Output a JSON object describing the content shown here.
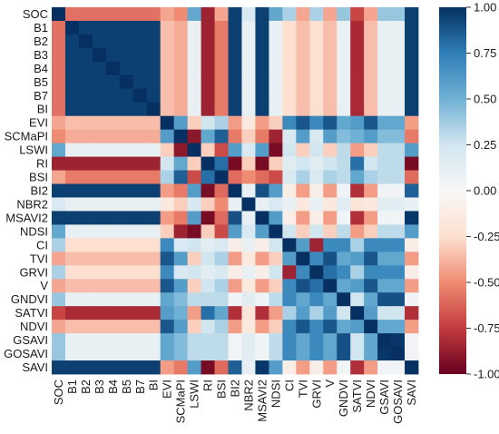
{
  "chart_data": {
    "type": "heatmap",
    "variables": [
      "SOC",
      "B1",
      "B2",
      "B3",
      "B4",
      "B5",
      "B7",
      "BI",
      "EVI",
      "SCMaPI",
      "LSWI",
      "RI",
      "BSI",
      "BI2",
      "NBR2",
      "MSAVI2",
      "NDSI",
      "CI",
      "TVI",
      "GRVI",
      "V",
      "GNDVI",
      "SATVI",
      "NDVI",
      "GSAVI",
      "GOSAVI",
      "SAVI"
    ],
    "groups": {
      "S": [
        1
      ],
      "B": [
        1,
        2,
        3,
        4,
        5,
        6,
        7
      ],
      "EV": [
        8,
        18,
        20,
        23
      ],
      "SC": [
        9
      ],
      "LW": [
        10,
        16
      ],
      "RI": [
        11
      ],
      "BS": [
        12
      ],
      "B2": [
        13,
        15,
        26
      ],
      "NB": [
        14
      ],
      "CI": [
        17,
        19
      ],
      "GN": [
        21,
        24,
        25
      ],
      "SA": [
        22
      ]
    },
    "corr": {
      "S-B": -0.58,
      "S-EV": -0.42,
      "S-SC": -0.5,
      "S-LW": 0.55,
      "S-RI": -0.85,
      "S-BS": -0.42,
      "S-B2": 0.95,
      "S-NB": 0.2,
      "S-CI": 0.35,
      "S-GN": 0.4,
      "S-SA": -0.72,
      "B-B": 0.95,
      "B-EV": -0.35,
      "B-SC": -0.4,
      "B-LW": 0.1,
      "B-RI": -0.85,
      "B-BS": -0.55,
      "B-B2": 0.95,
      "B-NB": 0.1,
      "B-CI": -0.25,
      "B-GN": 0.1,
      "B-SA": -0.82,
      "EV-EV": 0.88,
      "EV-SC": 0.6,
      "EV-LW": -0.3,
      "EV-RI": 0.25,
      "EV-BS": 0.35,
      "EV-B2": -0.45,
      "EV-NB": -0.15,
      "EV-CI": 0.7,
      "EV-GN": 0.55,
      "EV-SA": 0.6,
      "SC-SC": 1,
      "SC-LW": -0.85,
      "SC-RI": 0.55,
      "SC-BS": 0.85,
      "SC-B2": -0.55,
      "SC-NB": -0.3,
      "SC-CI": 0.2,
      "SC-GN": 0.45,
      "SC-SA": 0.5,
      "LW-LW": 0.95,
      "LW-RI": -0.3,
      "LW-BS": -0.7,
      "LW-B2": 0.6,
      "LW-NB": 0.2,
      "LW-CI": 0.25,
      "LW-GN": 0.3,
      "LW-SA": -0.45,
      "RI-RI": 1,
      "RI-BS": 0.75,
      "RI-B2": -0.95,
      "RI-NB": -0.3,
      "RI-CI": 0.15,
      "RI-GN": 0.3,
      "RI-SA": 0.8,
      "BS-BS": 1,
      "BS-B2": -0.6,
      "BS-NB": -0.5,
      "BS-CI": 0.2,
      "BS-GN": 0.3,
      "BS-SA": 0.55,
      "B2-B2": 0.98,
      "B2-NB": 0.1,
      "B2-CI": -0.1,
      "B2-GN": 0.05,
      "B2-SA": -0.8,
      "NB-NB": 1,
      "NB-CI": 0.1,
      "NB-GN": 0.15,
      "NB-SA": -0.2,
      "CI-CI": 0.2,
      "CI-GN": 0.7,
      "CI-SA": 0.35,
      "GN-GN": 0.95,
      "GN-SA": 0.25,
      "SA-SA": 1
    },
    "overrides": [
      [
        17,
        19,
        -0.85
      ],
      [
        17,
        18,
        0.6
      ],
      [
        19,
        20,
        0.8
      ],
      [
        18,
        20,
        0.9
      ],
      [
        16,
        10,
        -0.95
      ],
      [
        9,
        10,
        -0.9
      ],
      [
        11,
        12,
        0.8
      ],
      [
        14,
        13,
        0.1
      ],
      [
        15,
        13,
        0.9
      ],
      [
        26,
        13,
        0.85
      ],
      [
        21,
        24,
        0.9
      ],
      [
        21,
        25,
        0.9
      ],
      [
        24,
        25,
        0.98
      ]
    ],
    "diagonal": 1.0,
    "colorbar": {
      "min": -1.0,
      "max": 1.0,
      "ticks": [
        "1.00",
        "0.75",
        "0.50",
        "0.25",
        "0.00",
        "-0.25",
        "-0.50",
        "-0.75",
        "-1.00"
      ],
      "colormap": "RdBu",
      "stops": [
        "#67001f",
        "#c23b3e",
        "#f08b73",
        "#fde0d0",
        "#f7f7f7",
        "#d2e6f0",
        "#6fb1d4",
        "#2f7fb8",
        "#053061"
      ]
    }
  }
}
